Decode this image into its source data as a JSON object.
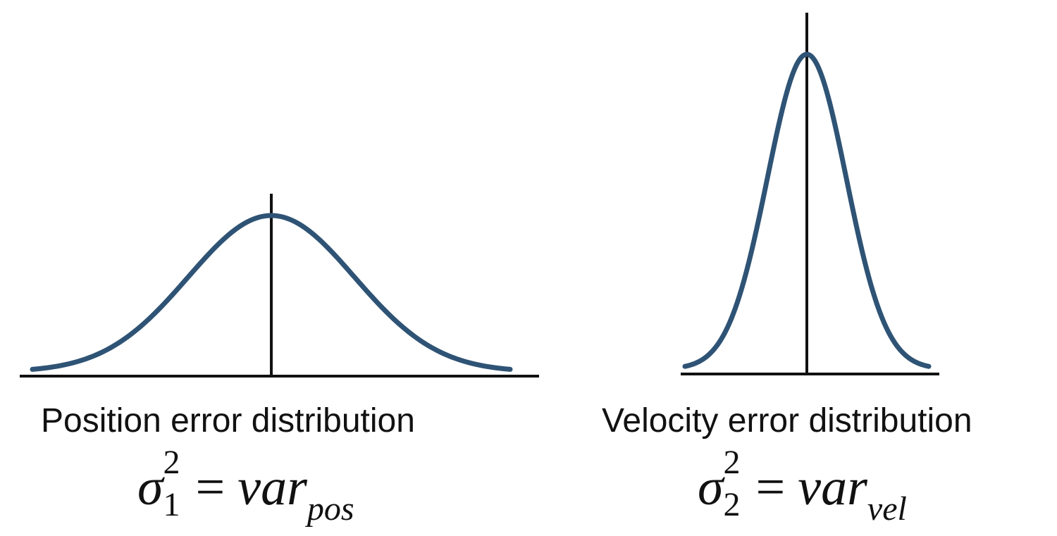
{
  "diagrams": [
    {
      "id": "position",
      "caption": "Position error distribution",
      "sigma_index": "1",
      "sigma_power": "2",
      "symbol": "σ",
      "equals": "=",
      "var_main": "var",
      "var_subscript": "pos",
      "relative_peak_height": 0.47,
      "relative_spread": 1.0
    },
    {
      "id": "velocity",
      "caption": "Velocity error distribution",
      "sigma_index": "2",
      "sigma_power": "2",
      "symbol": "σ",
      "equals": "=",
      "var_main": "var",
      "var_subscript": "vel",
      "relative_peak_height": 1.0,
      "relative_spread": 0.45
    }
  ],
  "colors": {
    "curve": "#2e5375",
    "axis": "#111111",
    "text": "#111111"
  }
}
